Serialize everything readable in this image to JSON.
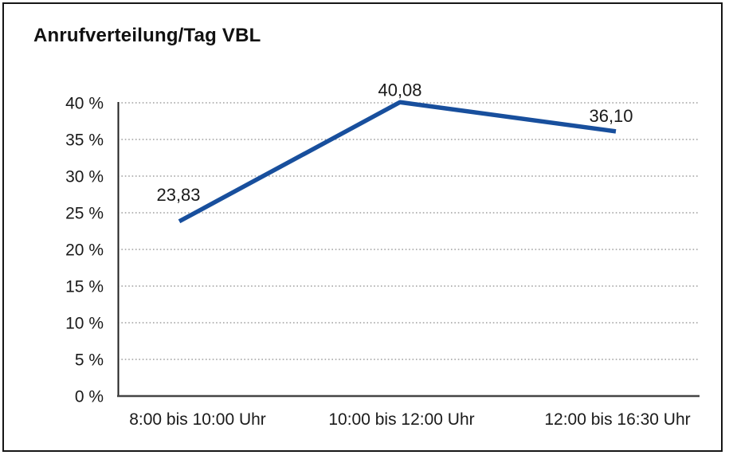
{
  "chart_data": {
    "type": "line",
    "title": "Anrufverteilung/Tag VBL",
    "categories": [
      "8:00 bis 10:00 Uhr",
      "10:00 bis 12:00 Uhr",
      "12:00 bis 16:30 Uhr"
    ],
    "series": [
      {
        "name": "Anrufverteilung",
        "values": [
          23.83,
          40.08,
          36.1
        ],
        "value_labels": [
          "23,83",
          "40,08",
          "36,10"
        ]
      }
    ],
    "xlabel": "",
    "ylabel": "",
    "ylim": [
      0,
      40
    ],
    "ytick_step": 5,
    "ytick_labels": [
      "0 %",
      "5 %",
      "10 %",
      "15 %",
      "20 %",
      "25 %",
      "30 %",
      "35 %",
      "40 %"
    ],
    "grid": "horizontal-dotted",
    "legend_position": "none",
    "colors": {
      "line": "#184f9d",
      "gridline": "#8c8c8c",
      "y_axis": "#1f1f1f",
      "baseline": "#454545",
      "text": "#1a1a1a",
      "frame_border": "#161616",
      "background": "#ffffff"
    }
  }
}
